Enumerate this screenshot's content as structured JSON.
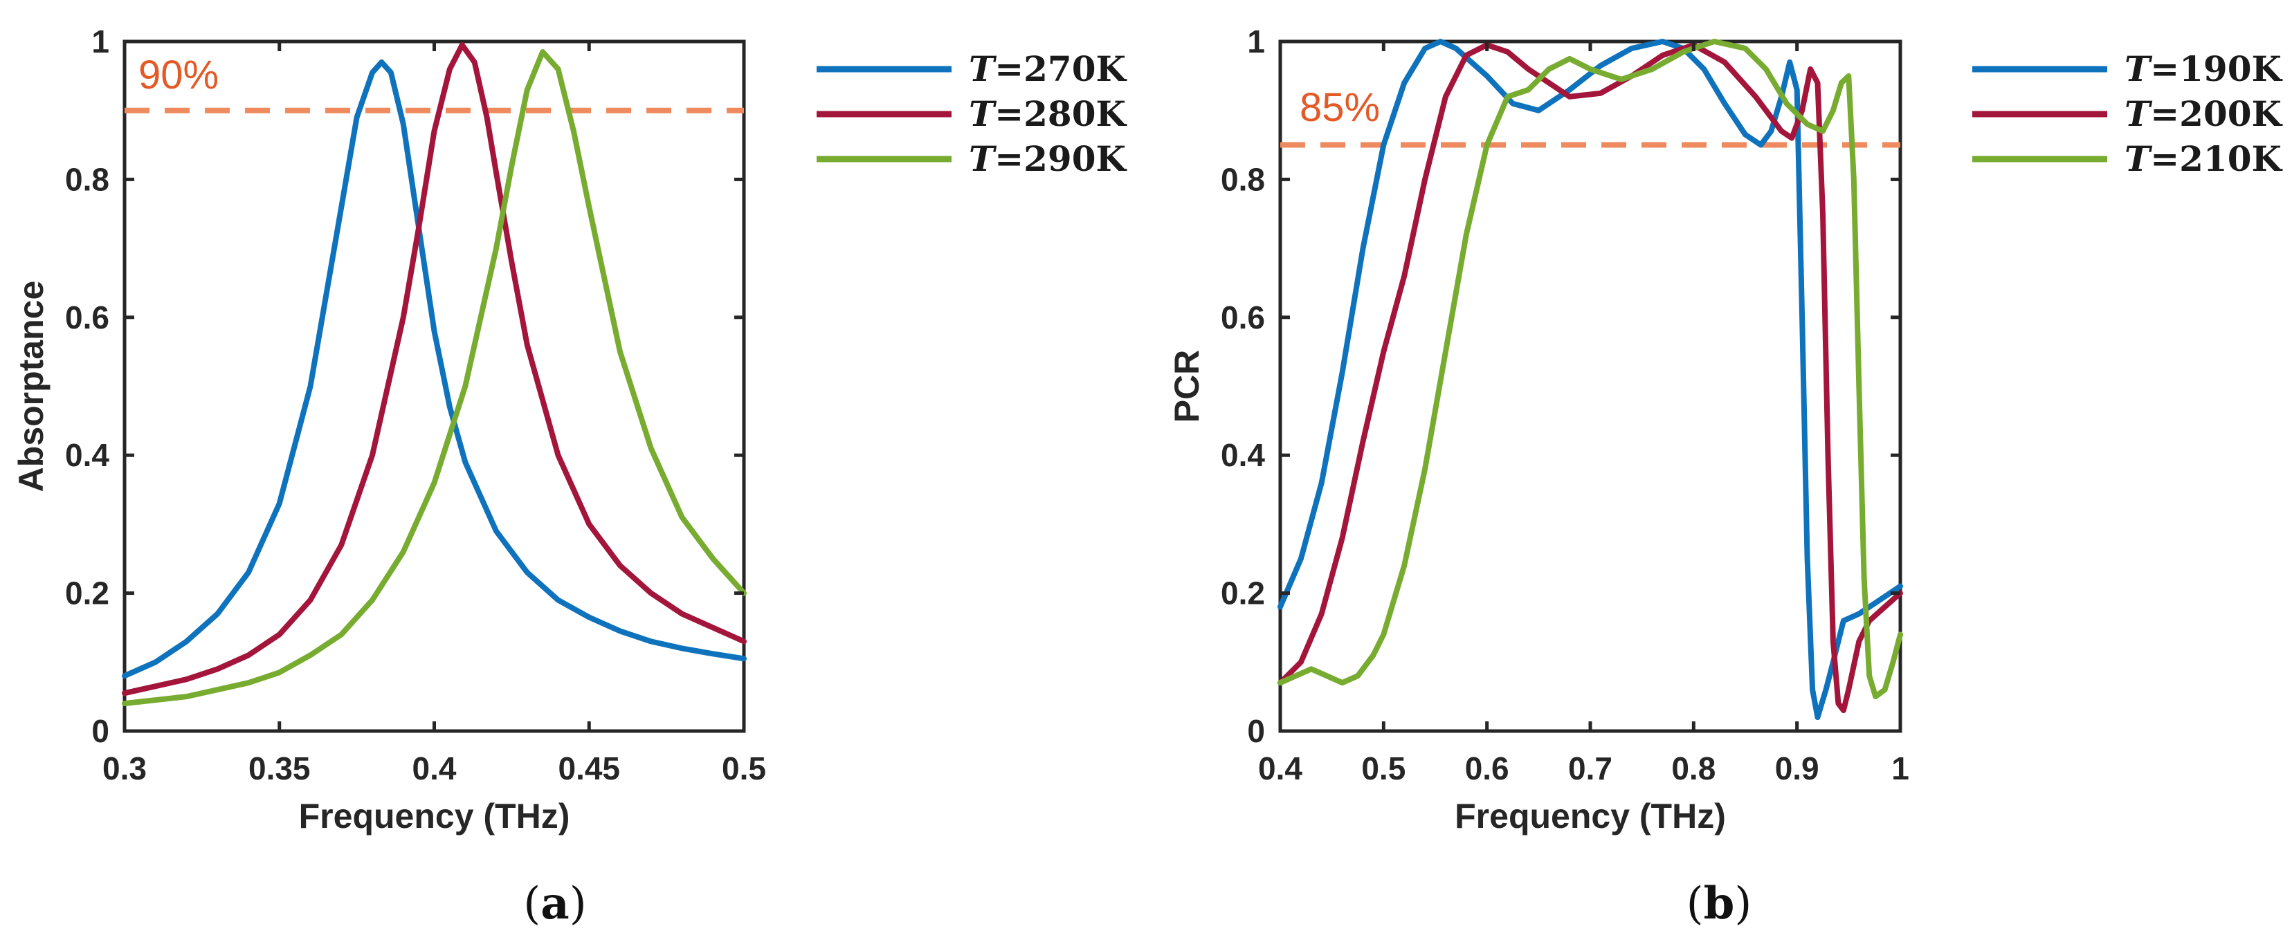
{
  "colors": {
    "blue": "#0e72bd",
    "red": "#a3153a",
    "green": "#77ac30",
    "threshold": "#ee8a5e",
    "threshold_text": "#e35a27",
    "axis": "#262626"
  },
  "chart_data": [
    {
      "type": "line",
      "panel_label": "a",
      "title": "",
      "xlabel": "Frequency (THz)",
      "ylabel": "Absorptance",
      "xlim": [
        0.3,
        0.5
      ],
      "ylim": [
        0,
        1
      ],
      "xticks": [
        0.3,
        0.35,
        0.4,
        0.45,
        0.5
      ],
      "xtick_labels": [
        "0.3",
        "0.35",
        "0.4",
        "0.45",
        "0.5"
      ],
      "yticks": [
        0,
        0.2,
        0.4,
        0.6,
        0.8,
        1
      ],
      "ytick_labels": [
        "0",
        "0.2",
        "0.4",
        "0.6",
        "0.8",
        "1"
      ],
      "grid": false,
      "legend_position": "outside-right",
      "threshold": {
        "y": 0.9,
        "label": "90%"
      },
      "series": [
        {
          "name": "T=270K",
          "legend_var": "T",
          "legend_eq": "=",
          "legend_value": "270K",
          "color": "blue",
          "x": [
            0.3,
            0.31,
            0.32,
            0.33,
            0.34,
            0.35,
            0.36,
            0.37,
            0.375,
            0.38,
            0.383,
            0.386,
            0.39,
            0.395,
            0.4,
            0.405,
            0.41,
            0.42,
            0.43,
            0.44,
            0.45,
            0.46,
            0.47,
            0.48,
            0.49,
            0.5
          ],
          "y": [
            0.08,
            0.1,
            0.13,
            0.17,
            0.23,
            0.33,
            0.5,
            0.76,
            0.89,
            0.955,
            0.97,
            0.955,
            0.88,
            0.73,
            0.58,
            0.47,
            0.39,
            0.29,
            0.23,
            0.19,
            0.165,
            0.145,
            0.13,
            0.12,
            0.112,
            0.105
          ]
        },
        {
          "name": "T=280K",
          "legend_var": "T",
          "legend_eq": "=",
          "legend_value": "280K",
          "color": "red",
          "x": [
            0.3,
            0.31,
            0.32,
            0.33,
            0.34,
            0.35,
            0.36,
            0.37,
            0.38,
            0.39,
            0.395,
            0.4,
            0.405,
            0.409,
            0.413,
            0.417,
            0.42,
            0.425,
            0.43,
            0.44,
            0.45,
            0.46,
            0.47,
            0.48,
            0.49,
            0.5
          ],
          "y": [
            0.055,
            0.065,
            0.075,
            0.09,
            0.11,
            0.14,
            0.19,
            0.27,
            0.4,
            0.6,
            0.73,
            0.87,
            0.96,
            0.995,
            0.97,
            0.89,
            0.81,
            0.68,
            0.56,
            0.4,
            0.3,
            0.24,
            0.2,
            0.17,
            0.15,
            0.13
          ]
        },
        {
          "name": "T=290K",
          "legend_var": "T",
          "legend_eq": "=",
          "legend_value": "290K",
          "color": "green",
          "x": [
            0.3,
            0.31,
            0.32,
            0.33,
            0.34,
            0.35,
            0.36,
            0.37,
            0.38,
            0.39,
            0.4,
            0.41,
            0.42,
            0.425,
            0.43,
            0.435,
            0.44,
            0.445,
            0.45,
            0.46,
            0.47,
            0.48,
            0.49,
            0.5
          ],
          "y": [
            0.04,
            0.045,
            0.05,
            0.06,
            0.07,
            0.085,
            0.11,
            0.14,
            0.19,
            0.26,
            0.36,
            0.5,
            0.7,
            0.82,
            0.93,
            0.985,
            0.96,
            0.87,
            0.76,
            0.55,
            0.41,
            0.31,
            0.25,
            0.2
          ]
        }
      ]
    },
    {
      "type": "line",
      "panel_label": "b",
      "title": "",
      "xlabel": "Frequency (THz)",
      "ylabel": "PCR",
      "xlim": [
        0.4,
        1.0
      ],
      "ylim": [
        0,
        1
      ],
      "xticks": [
        0.4,
        0.5,
        0.6,
        0.7,
        0.8,
        0.9,
        1.0
      ],
      "xtick_labels": [
        "0.4",
        "0.5",
        "0.6",
        "0.7",
        "0.8",
        "0.9",
        "1"
      ],
      "yticks": [
        0,
        0.2,
        0.4,
        0.6,
        0.8,
        1
      ],
      "ytick_labels": [
        "0",
        "0.2",
        "0.4",
        "0.6",
        "0.8",
        "1"
      ],
      "grid": false,
      "legend_position": "outside-right",
      "threshold": {
        "y": 0.85,
        "label": "85%"
      },
      "series": [
        {
          "name": "T=190K",
          "legend_var": "T",
          "legend_eq": "=",
          "legend_value": "190K",
          "color": "blue",
          "x": [
            0.4,
            0.42,
            0.44,
            0.46,
            0.48,
            0.5,
            0.52,
            0.54,
            0.555,
            0.57,
            0.6,
            0.625,
            0.65,
            0.68,
            0.71,
            0.74,
            0.77,
            0.79,
            0.81,
            0.83,
            0.85,
            0.865,
            0.875,
            0.885,
            0.893,
            0.9,
            0.905,
            0.91,
            0.915,
            0.92,
            0.928,
            0.935,
            0.945,
            0.96,
            0.975,
            0.99,
            1.0
          ],
          "y": [
            0.18,
            0.25,
            0.36,
            0.52,
            0.7,
            0.85,
            0.94,
            0.99,
            1.0,
            0.99,
            0.95,
            0.91,
            0.9,
            0.93,
            0.965,
            0.99,
            1.0,
            0.99,
            0.96,
            0.91,
            0.865,
            0.85,
            0.87,
            0.92,
            0.97,
            0.93,
            0.6,
            0.25,
            0.06,
            0.02,
            0.06,
            0.1,
            0.16,
            0.17,
            0.185,
            0.2,
            0.21
          ]
        },
        {
          "name": "T=200K",
          "legend_var": "T",
          "legend_eq": "=",
          "legend_value": "200K",
          "color": "red",
          "x": [
            0.4,
            0.42,
            0.44,
            0.46,
            0.48,
            0.5,
            0.52,
            0.54,
            0.56,
            0.58,
            0.6,
            0.62,
            0.64,
            0.66,
            0.68,
            0.71,
            0.74,
            0.77,
            0.8,
            0.83,
            0.86,
            0.885,
            0.895,
            0.905,
            0.913,
            0.92,
            0.925,
            0.93,
            0.935,
            0.94,
            0.945,
            0.95,
            0.96,
            0.97,
            0.985,
            1.0
          ],
          "y": [
            0.07,
            0.1,
            0.17,
            0.28,
            0.42,
            0.55,
            0.66,
            0.8,
            0.92,
            0.98,
            0.995,
            0.985,
            0.96,
            0.94,
            0.92,
            0.925,
            0.95,
            0.98,
            0.995,
            0.97,
            0.92,
            0.87,
            0.86,
            0.9,
            0.96,
            0.94,
            0.75,
            0.4,
            0.13,
            0.04,
            0.03,
            0.06,
            0.13,
            0.16,
            0.18,
            0.2
          ]
        },
        {
          "name": "T=210K",
          "legend_var": "T",
          "legend_eq": "=",
          "legend_value": "210K",
          "color": "green",
          "x": [
            0.4,
            0.415,
            0.43,
            0.445,
            0.46,
            0.475,
            0.49,
            0.5,
            0.52,
            0.54,
            0.56,
            0.58,
            0.6,
            0.62,
            0.64,
            0.66,
            0.68,
            0.7,
            0.73,
            0.76,
            0.79,
            0.82,
            0.85,
            0.87,
            0.89,
            0.91,
            0.925,
            0.935,
            0.943,
            0.95,
            0.955,
            0.96,
            0.965,
            0.97,
            0.976,
            0.985,
            0.993,
            1.0
          ],
          "y": [
            0.07,
            0.08,
            0.09,
            0.08,
            0.07,
            0.08,
            0.11,
            0.14,
            0.24,
            0.38,
            0.55,
            0.72,
            0.85,
            0.92,
            0.93,
            0.96,
            0.975,
            0.96,
            0.945,
            0.96,
            0.985,
            1.0,
            0.99,
            0.96,
            0.91,
            0.88,
            0.87,
            0.9,
            0.94,
            0.95,
            0.8,
            0.5,
            0.22,
            0.08,
            0.05,
            0.06,
            0.1,
            0.14
          ]
        }
      ]
    }
  ]
}
